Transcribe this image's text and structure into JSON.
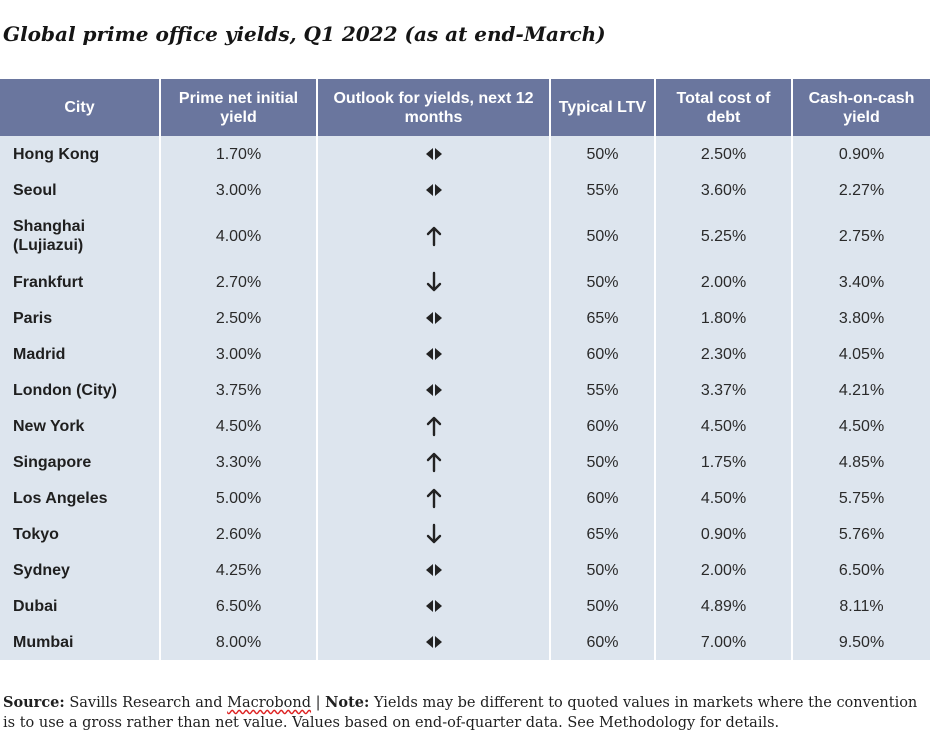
{
  "title": "Global prime office yields, Q1 2022 (as at end-March)",
  "table": {
    "headers": [
      "City",
      "Prime net initial yield",
      "Outlook for yields, next 12 months",
      "Typical LTV",
      "Total cost of debt",
      "Cash-on-cash yield"
    ],
    "rows": [
      {
        "city": "Hong Kong",
        "yield": "1.70%",
        "outlook": "stable",
        "ltv": "50%",
        "cost": "2.50%",
        "cash": "0.90%"
      },
      {
        "city": "Seoul",
        "yield": "3.00%",
        "outlook": "stable",
        "ltv": "55%",
        "cost": "3.60%",
        "cash": "2.27%"
      },
      {
        "city": "Shanghai (Lujiazui)",
        "yield": "4.00%",
        "outlook": "up",
        "ltv": "50%",
        "cost": "5.25%",
        "cash": "2.75%"
      },
      {
        "city": "Frankfurt",
        "yield": "2.70%",
        "outlook": "down",
        "ltv": "50%",
        "cost": "2.00%",
        "cash": "3.40%"
      },
      {
        "city": "Paris",
        "yield": "2.50%",
        "outlook": "stable",
        "ltv": "65%",
        "cost": "1.80%",
        "cash": "3.80%"
      },
      {
        "city": "Madrid",
        "yield": "3.00%",
        "outlook": "stable",
        "ltv": "60%",
        "cost": "2.30%",
        "cash": "4.05%"
      },
      {
        "city": "London (City)",
        "yield": "3.75%",
        "outlook": "stable",
        "ltv": "55%",
        "cost": "3.37%",
        "cash": "4.21%"
      },
      {
        "city": "New York",
        "yield": "4.50%",
        "outlook": "up",
        "ltv": "60%",
        "cost": "4.50%",
        "cash": "4.50%"
      },
      {
        "city": "Singapore",
        "yield": "3.30%",
        "outlook": "up",
        "ltv": "50%",
        "cost": "1.75%",
        "cash": "4.85%"
      },
      {
        "city": "Los Angeles",
        "yield": "5.00%",
        "outlook": "up",
        "ltv": "60%",
        "cost": "4.50%",
        "cash": "5.75%"
      },
      {
        "city": "Tokyo",
        "yield": "2.60%",
        "outlook": "down",
        "ltv": "65%",
        "cost": "0.90%",
        "cash": "5.76%"
      },
      {
        "city": "Sydney",
        "yield": "4.25%",
        "outlook": "stable",
        "ltv": "50%",
        "cost": "2.00%",
        "cash": "6.50%"
      },
      {
        "city": "Dubai",
        "yield": "6.50%",
        "outlook": "stable",
        "ltv": "50%",
        "cost": "4.89%",
        "cash": "8.11%"
      },
      {
        "city": "Mumbai",
        "yield": "8.00%",
        "outlook": "stable",
        "ltv": "60%",
        "cost": "7.00%",
        "cash": "9.50%"
      }
    ]
  },
  "footer": {
    "source_label": "Source:",
    "source_text_a": " Savills Research and ",
    "source_text_b": "Macrobond",
    "separator": " | ",
    "note_label": "Note:",
    "note_text": " Yields may be different to quoted values in markets where the convention is to use a gross rather than net value. Values based on end-of-quarter data. See Methodology for details."
  },
  "colors": {
    "header_bg": "#6a769e",
    "row_bg": "#dde5ee",
    "text": "#1f1f1f"
  }
}
